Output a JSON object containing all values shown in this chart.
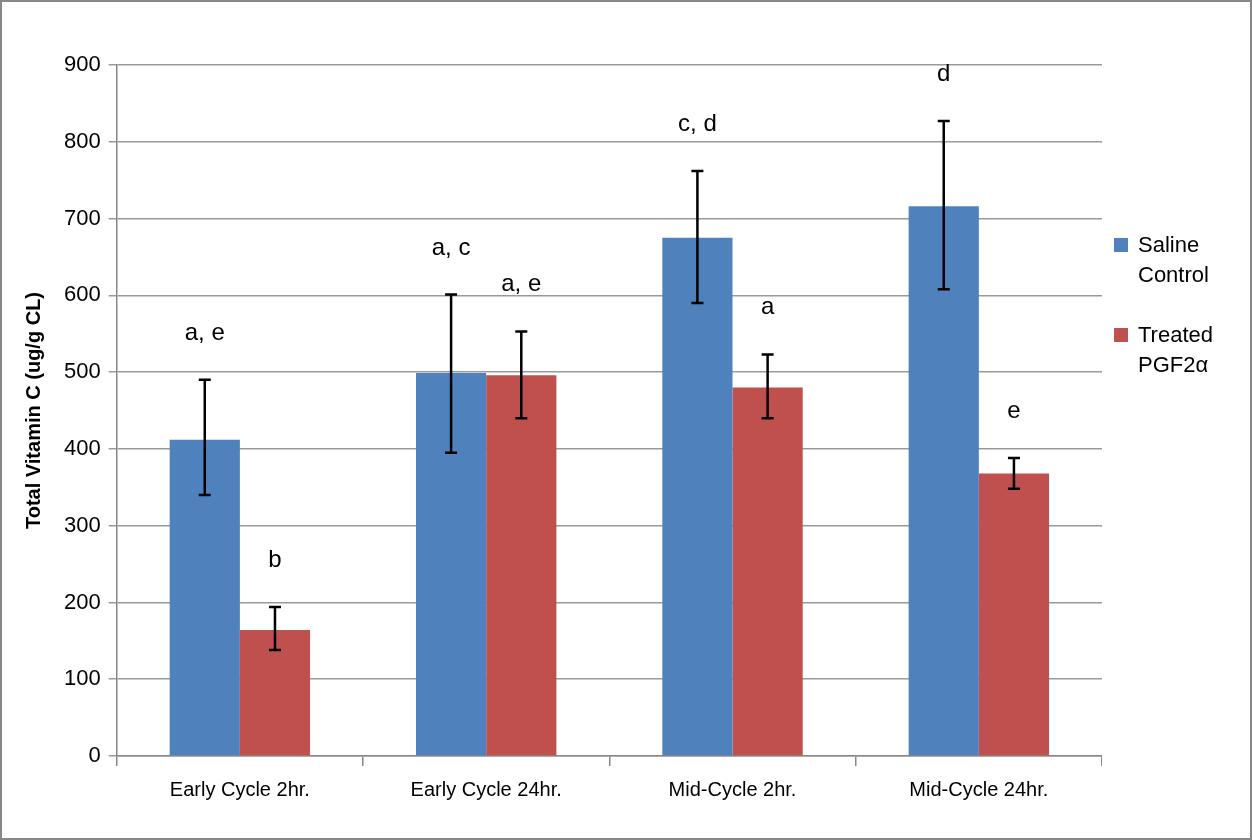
{
  "chart_data": {
    "type": "bar",
    "ylabel": "Total Vitamin C (ug/g CL)",
    "categories": [
      "Early Cycle 2hr.",
      "Early Cycle 24hr.",
      "Mid-Cycle 2hr.",
      "Mid-Cycle 24hr."
    ],
    "series": [
      {
        "name": "Saline Control",
        "color": "#4f81bd",
        "values": [
          412,
          499,
          675,
          716
        ],
        "errors": [
          [
            340,
            490
          ],
          [
            395,
            601
          ],
          [
            590,
            762
          ],
          [
            608,
            827
          ]
        ]
      },
      {
        "name": "Treated PGF2α",
        "color": "#c0504d",
        "values": [
          164,
          496,
          480,
          368
        ],
        "errors": [
          [
            138,
            194
          ],
          [
            440,
            553
          ],
          [
            440,
            523
          ],
          [
            348,
            388
          ]
        ]
      }
    ],
    "ylim": [
      0,
      900
    ],
    "yticks": [
      0,
      100,
      200,
      300,
      400,
      500,
      600,
      700,
      800,
      900
    ],
    "grid": "y",
    "legend": "right",
    "annotations": [
      "a, e",
      "b",
      "a, c",
      "a, e",
      "c, d",
      "a",
      "d",
      "e"
    ]
  }
}
